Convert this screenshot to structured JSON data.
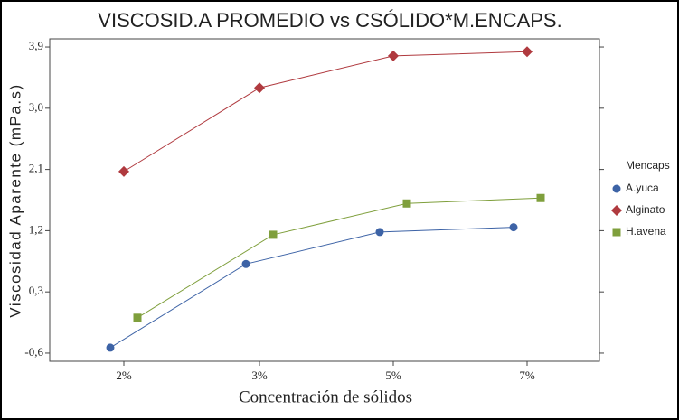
{
  "chart_data": {
    "type": "line",
    "title": "VISCOSID.A PROMEDIO vs CSÓLIDO*M.ENCAPS.",
    "x_label": "Concentración de sólidos",
    "y_label": "Viscosidad Aparente (mPa.s)",
    "legend_title": "Mencaps",
    "categories": [
      "2%",
      "3%",
      "5%",
      "7%"
    ],
    "series": [
      {
        "name": "A.yuca",
        "color": "#3d63a6",
        "marker": "circle",
        "values": [
          -0.52,
          0.71,
          1.18,
          1.25
        ]
      },
      {
        "name": "Alginato",
        "color": "#b03a3f",
        "marker": "diamond",
        "values": [
          2.07,
          3.3,
          3.77,
          3.83
        ]
      },
      {
        "name": "H.avena",
        "color": "#7f9f3c",
        "marker": "square",
        "values": [
          -0.08,
          1.14,
          1.6,
          1.68
        ]
      }
    ],
    "ylim": [
      -0.72,
      4.02
    ],
    "yticks": [
      {
        "value": -0.6,
        "label": "-0,6"
      },
      {
        "value": 0.3,
        "label": "0,3"
      },
      {
        "value": 1.2,
        "label": "1,2"
      },
      {
        "value": 2.1,
        "label": "2,1"
      },
      {
        "value": 3.0,
        "label": "3,0"
      },
      {
        "value": 3.9,
        "label": "3,9"
      }
    ],
    "legend_position": "right"
  }
}
